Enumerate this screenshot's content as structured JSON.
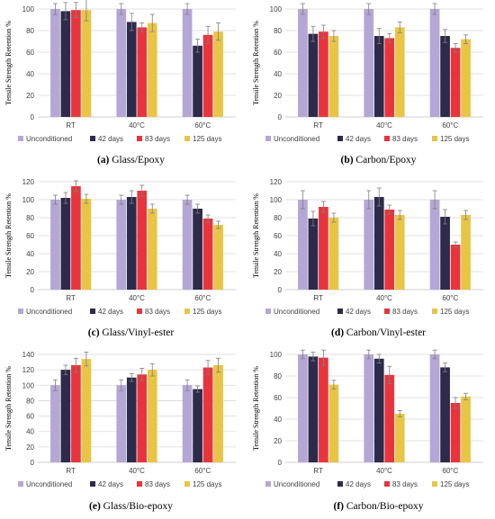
{
  "colors": {
    "Unconditioned": "#b4a7d6",
    "42 days": "#2d2a4a",
    "83 days": "#e8353d",
    "125 days": "#e8c547",
    "grid": "#d9d9d9",
    "axis": "#bfbfbf",
    "error": "#7f7f7f"
  },
  "chart_data": [
    {
      "type": "bar",
      "caption_letter": "(a)",
      "caption_text": "Glass/Epoxy",
      "ylabel": "Tensile Strength Retention %",
      "ylim": [
        0,
        100
      ],
      "yticks": [
        0,
        20,
        40,
        60,
        80,
        100
      ],
      "categories": [
        "RT",
        "40°C",
        "60°C"
      ],
      "legend_position": "bottom",
      "series": [
        {
          "name": "Unconditioned",
          "values": [
            100,
            100,
            100
          ],
          "errors": [
            5,
            5,
            5
          ]
        },
        {
          "name": "42 days",
          "values": [
            98,
            88,
            66
          ],
          "errors": [
            8,
            8,
            6
          ]
        },
        {
          "name": "83 days",
          "values": [
            99,
            83,
            76
          ],
          "errors": [
            7,
            4,
            8
          ]
        },
        {
          "name": "125 days",
          "values": [
            99,
            87,
            79
          ],
          "errors": [
            10,
            8,
            8
          ]
        }
      ]
    },
    {
      "type": "bar",
      "caption_letter": "(b)",
      "caption_text": "Carbon/Epoxy",
      "ylabel": "Tensile Strength Retention %",
      "ylim": [
        0,
        100
      ],
      "yticks": [
        0,
        20,
        40,
        60,
        80,
        100
      ],
      "categories": [
        "RT",
        "40°C",
        "60°C"
      ],
      "legend_position": "bottom",
      "series": [
        {
          "name": "Unconditioned",
          "values": [
            100,
            100,
            100
          ],
          "errors": [
            5,
            5,
            5
          ]
        },
        {
          "name": "42 days",
          "values": [
            77,
            75,
            75
          ],
          "errors": [
            7,
            7,
            6
          ]
        },
        {
          "name": "83 days",
          "values": [
            79,
            73,
            64
          ],
          "errors": [
            6,
            4,
            4
          ]
        },
        {
          "name": "125 days",
          "values": [
            75,
            83,
            72
          ],
          "errors": [
            5,
            5,
            4
          ]
        }
      ]
    },
    {
      "type": "bar",
      "caption_letter": "(c)",
      "caption_text": "Glass/Vinyl-ester",
      "ylabel": "Tensile Strength Retention %",
      "ylim": [
        0,
        120
      ],
      "yticks": [
        0,
        20,
        40,
        60,
        80,
        100,
        120
      ],
      "categories": [
        "RT",
        "40°C",
        "60°C"
      ],
      "legend_position": "bottom",
      "series": [
        {
          "name": "Unconditioned",
          "values": [
            100,
            100,
            100
          ],
          "errors": [
            5,
            5,
            5
          ]
        },
        {
          "name": "42 days",
          "values": [
            102,
            103,
            90
          ],
          "errors": [
            6,
            7,
            5
          ]
        },
        {
          "name": "83 days",
          "values": [
            115,
            110,
            79
          ],
          "errors": [
            6,
            6,
            4
          ]
        },
        {
          "name": "125 days",
          "values": [
            101,
            90,
            72
          ],
          "errors": [
            5,
            5,
            4
          ]
        }
      ]
    },
    {
      "type": "bar",
      "caption_letter": "(d)",
      "caption_text": "Carbon/Vinyl-ester",
      "ylabel": "Tensile Strength Retention %",
      "ylim": [
        0,
        120
      ],
      "yticks": [
        0,
        20,
        40,
        60,
        80,
        100,
        120
      ],
      "categories": [
        "RT",
        "40°C",
        "60°C"
      ],
      "legend_position": "bottom",
      "series": [
        {
          "name": "Unconditioned",
          "values": [
            100,
            100,
            100
          ],
          "errors": [
            10,
            10,
            10
          ]
        },
        {
          "name": "42 days",
          "values": [
            79,
            103,
            81
          ],
          "errors": [
            8,
            10,
            8
          ]
        },
        {
          "name": "83 days",
          "values": [
            92,
            89,
            50
          ],
          "errors": [
            6,
            5,
            3
          ]
        },
        {
          "name": "125 days",
          "values": [
            80,
            83,
            83
          ],
          "errors": [
            5,
            5,
            5
          ]
        }
      ]
    },
    {
      "type": "bar",
      "caption_letter": "(e)",
      "caption_text": "Glass/Bio-epoxy",
      "ylabel": "Tensile Strength Retention %",
      "ylim": [
        0,
        140
      ],
      "yticks": [
        0,
        20,
        40,
        60,
        80,
        100,
        120,
        140
      ],
      "categories": [
        "RT",
        "40°C",
        "60°C"
      ],
      "legend_position": "bottom",
      "series": [
        {
          "name": "Unconditioned",
          "values": [
            100,
            100,
            100
          ],
          "errors": [
            7,
            7,
            7
          ]
        },
        {
          "name": "42 days",
          "values": [
            120,
            110,
            95
          ],
          "errors": [
            6,
            5,
            4
          ]
        },
        {
          "name": "83 days",
          "values": [
            126,
            114,
            123
          ],
          "errors": [
            9,
            8,
            9
          ]
        },
        {
          "name": "125 days",
          "values": [
            134,
            120,
            126
          ],
          "errors": [
            9,
            8,
            9
          ]
        }
      ]
    },
    {
      "type": "bar",
      "caption_letter": "(f)",
      "caption_text": "Carbon/Bio-epoxy",
      "ylabel": "Tensile Strength Retention %",
      "ylim": [
        0,
        100
      ],
      "yticks": [
        0,
        20,
        40,
        60,
        80,
        100
      ],
      "categories": [
        "RT",
        "40°C",
        "60°C"
      ],
      "legend_position": "bottom",
      "series": [
        {
          "name": "Unconditioned",
          "values": [
            100,
            100,
            100
          ],
          "errors": [
            4,
            4,
            4
          ]
        },
        {
          "name": "42 days",
          "values": [
            98,
            96,
            88
          ],
          "errors": [
            4,
            4,
            4
          ]
        },
        {
          "name": "83 days",
          "values": [
            97,
            81,
            55
          ],
          "errors": [
            7,
            8,
            5
          ]
        },
        {
          "name": "125 days",
          "values": [
            72,
            45,
            61
          ],
          "errors": [
            4,
            3,
            3
          ]
        }
      ]
    }
  ]
}
